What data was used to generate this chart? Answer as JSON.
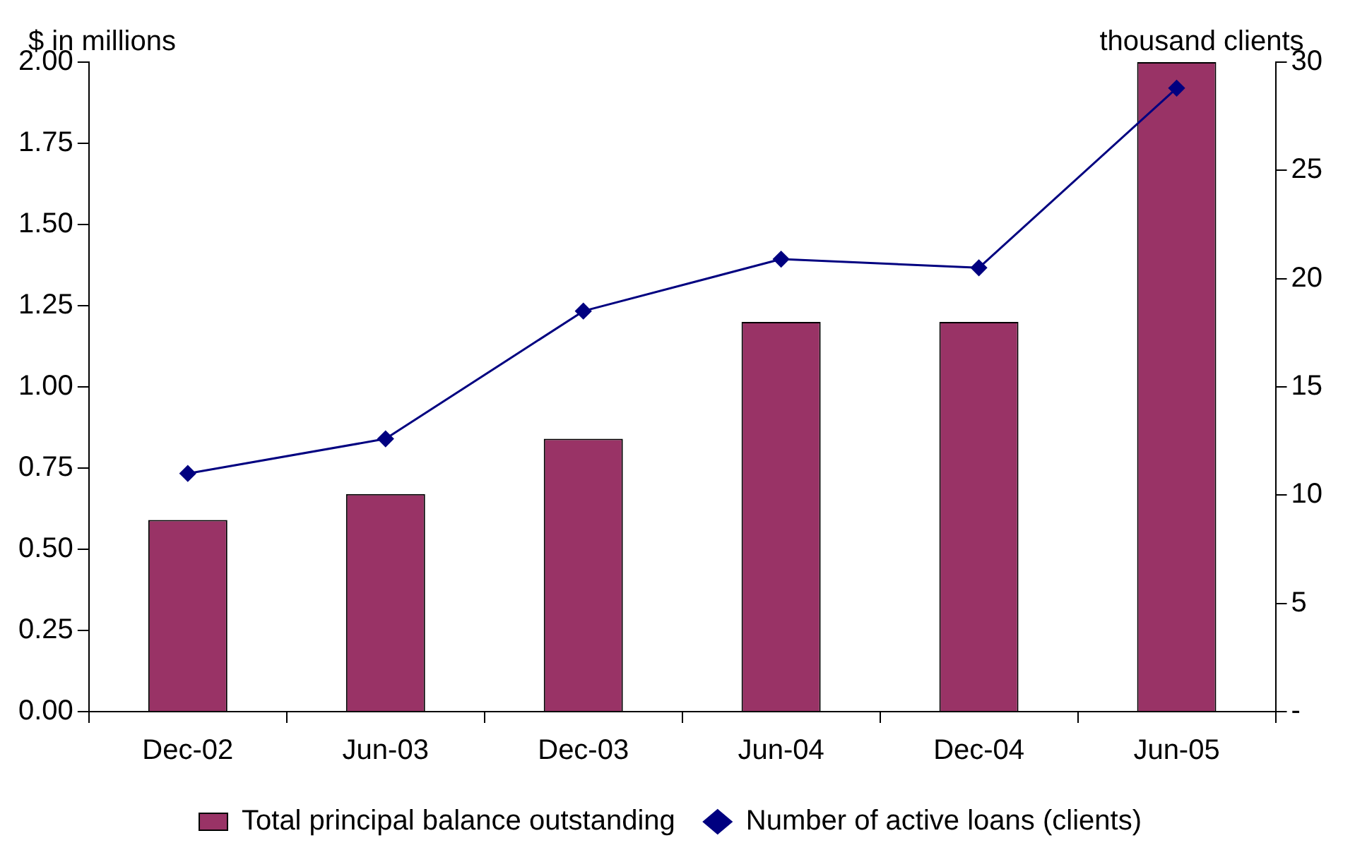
{
  "chart_data": {
    "type": "bar",
    "ylabel": "$ in millions",
    "y2label": "thousand clients",
    "categories": [
      "Dec-02",
      "Jun-03",
      "Dec-03",
      "Jun-04",
      "Dec-04",
      "Jun-05"
    ],
    "series": [
      {
        "name": "Total principal balance outstanding",
        "color": "#993366",
        "values": [
          0.59,
          0.67,
          0.84,
          1.2,
          1.2,
          2.0
        ]
      },
      {
        "name": "Number of active loans (clients)",
        "type": "line",
        "axis": "y2",
        "color": "#000080",
        "values": [
          11.0,
          12.6,
          18.5,
          20.9,
          20.5,
          28.8
        ]
      }
    ],
    "ylim": [
      0,
      2
    ],
    "yticks": [
      {
        "value": 0,
        "label": "0.00"
      },
      {
        "value": 0.25,
        "label": "0.25"
      },
      {
        "value": 0.5,
        "label": "0.50"
      },
      {
        "value": 0.75,
        "label": "0.75"
      },
      {
        "value": 1,
        "label": "1.00"
      },
      {
        "value": 1.25,
        "label": "1.25"
      },
      {
        "value": 1.5,
        "label": "1.50"
      },
      {
        "value": 1.75,
        "label": "1.75"
      },
      {
        "value": 2,
        "label": "2.00"
      }
    ],
    "y2lim": [
      0,
      30
    ],
    "y2ticks": [
      {
        "value": 0,
        "label": "-"
      },
      5,
      10,
      15,
      20,
      25,
      30
    ],
    "grid": false,
    "legend": "bottom",
    "marker": "diamond",
    "line_style": "solid"
  }
}
